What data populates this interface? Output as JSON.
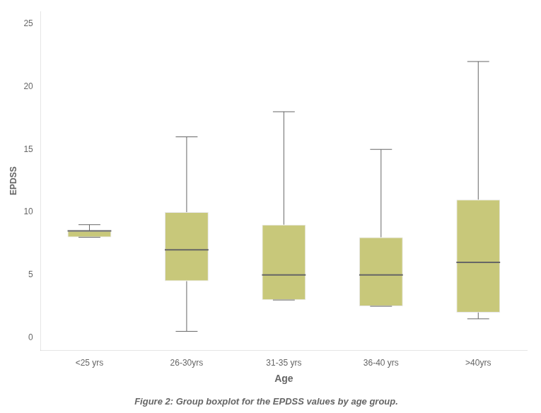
{
  "chart_data": {
    "type": "box",
    "caption": "Figure 2: Group boxplot for the EPDSS values by age group.",
    "xlabel": "Age",
    "ylabel": "EPDSS",
    "categories": [
      "<25 yrs",
      "26-30yrs",
      "31-35 yrs",
      "36-40 yrs",
      ">40yrs"
    ],
    "values": [
      {
        "min": 8.0,
        "q1": 8.0,
        "median": 8.5,
        "q3": 8.5,
        "max": 9.0
      },
      {
        "min": 0.5,
        "q1": 4.5,
        "median": 7.0,
        "q3": 10.0,
        "max": 16.0
      },
      {
        "min": 3.0,
        "q1": 3.0,
        "median": 5.0,
        "q3": 9.0,
        "max": 18.0
      },
      {
        "min": 2.5,
        "q1": 2.5,
        "median": 5.0,
        "q3": 8.0,
        "max": 15.0
      },
      {
        "min": 1.5,
        "q1": 2.0,
        "median": 6.0,
        "q3": 11.0,
        "max": 22.0
      }
    ],
    "color": "#C8C87A",
    "ylim": [
      -1,
      26
    ],
    "yticks": [
      0,
      5,
      10,
      15,
      20,
      25
    ],
    "grid": false
  }
}
